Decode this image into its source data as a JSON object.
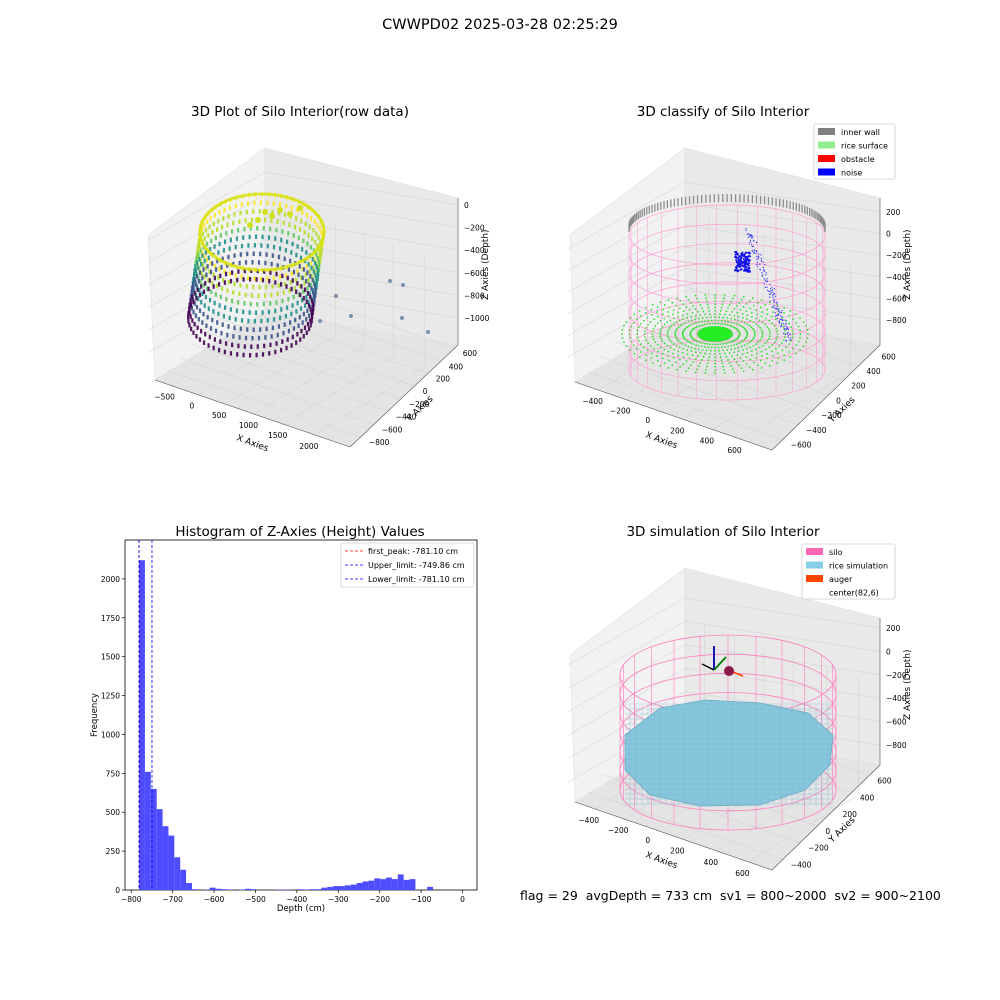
{
  "figure_title": "CWWPD02 2025-03-28 02:25:29",
  "footer_text": "flag = 29  avgDepth = 733 cm  sv1 = 800~2000  sv2 = 900~2100",
  "chart_data": [
    {
      "type": "scatter",
      "title": "3D Plot of Silo Interior(row data)",
      "xlabel": "X Axies",
      "ylabel": "Y Axies",
      "zlabel": "Z Axies (Depth)",
      "x_ticks": [
        "−500",
        "0",
        "500",
        "1000",
        "1500",
        "2000"
      ],
      "y_ticks": [
        "−800",
        "−600",
        "−400",
        "−200",
        "0",
        "200",
        "400",
        "600"
      ],
      "z_ticks": [
        "0",
        "−200",
        "−400",
        "−600",
        "−800",
        "−1000"
      ],
      "colormap": "viridis"
    },
    {
      "type": "scatter",
      "title": "3D classify of Silo Interior",
      "xlabel": "X Axies",
      "ylabel": "Y Axies",
      "zlabel": "Z Axies (Depth)",
      "x_ticks": [
        "−400",
        "−200",
        "0",
        "200",
        "400",
        "600"
      ],
      "y_ticks": [
        "−600",
        "−400",
        "−200",
        "0",
        "200",
        "400",
        "600"
      ],
      "z_ticks": [
        "200",
        "0",
        "−200",
        "−400",
        "−600",
        "−800"
      ],
      "legend": [
        {
          "label": "inner wall",
          "color": "#808080"
        },
        {
          "label": "rice surface",
          "color": "#90ee90"
        },
        {
          "label": "obstacle",
          "color": "#ff0000"
        },
        {
          "label": "noise",
          "color": "#0000ff"
        }
      ],
      "legend_position": "top-right"
    },
    {
      "type": "bar",
      "title": "Histogram of Z-Axies (Height) Values",
      "xlabel": "Depth (cm)",
      "ylabel": "Frequency",
      "xlim": [
        -815,
        35
      ],
      "ylim": [
        0,
        2250
      ],
      "x_ticks": [
        -800,
        -700,
        -600,
        -500,
        -400,
        -300,
        -200,
        -100,
        0
      ],
      "y_ticks": [
        0,
        250,
        500,
        750,
        1000,
        1250,
        1500,
        1750,
        2000
      ],
      "bin_width": 14.2,
      "bins_start": [
        -781.1,
        -766.9,
        -752.7,
        -738.5,
        -724.3,
        -710.1,
        -695.9,
        -681.7,
        -667.5,
        -653.3,
        -639.1,
        -624.9,
        -610.7,
        -596.5,
        -582.3,
        -568.1,
        -553.9,
        -539.7,
        -525.5,
        -511.3,
        -497.1,
        -482.9,
        -468.7,
        -454.5,
        -440.3,
        -426.1,
        -411.9,
        -397.7,
        -383.5,
        -369.3,
        -355.1,
        -340.9,
        -326.7,
        -312.5,
        -298.3,
        -284.1,
        -269.9,
        -255.7,
        -241.5,
        -227.3,
        -213.1,
        -198.9,
        -184.7,
        -170.5,
        -156.3,
        -142.1,
        -127.9,
        -113.7,
        -99.5,
        -85.3,
        -71.1,
        -56.9,
        -42.7,
        -28.5,
        -14.3
      ],
      "counts": [
        2120,
        760,
        650,
        520,
        410,
        350,
        210,
        130,
        45,
        5,
        0,
        3,
        15,
        8,
        5,
        3,
        0,
        3,
        8,
        5,
        0,
        0,
        0,
        3,
        3,
        3,
        0,
        5,
        3,
        5,
        5,
        15,
        20,
        25,
        25,
        30,
        35,
        45,
        55,
        60,
        75,
        70,
        80,
        70,
        100,
        65,
        70,
        0,
        0,
        20,
        0,
        0,
        0,
        0,
        0
      ],
      "vlines": [
        {
          "label": "first_peak: -781.10 cm",
          "x": -781.1,
          "color": "#ff0000"
        },
        {
          "label": "Upper_limit: -749.86 cm",
          "x": -749.86,
          "color": "#0000ff"
        },
        {
          "label": "Lower_limit: -781.10 cm",
          "x": -781.1,
          "color": "#0000ff"
        }
      ],
      "bar_color": "#4d4dff",
      "legend_position": "top-right"
    },
    {
      "type": "scatter",
      "title": "3D simulation of Silo Interior",
      "xlabel": "X Axies",
      "ylabel": "Y Axies",
      "zlabel": "Z Axies (Depth)",
      "x_ticks": [
        "−400",
        "−200",
        "0",
        "200",
        "400",
        "600"
      ],
      "y_ticks": [
        "−400",
        "−200",
        "0",
        "200",
        "400",
        "600"
      ],
      "z_ticks": [
        "200",
        "0",
        "−200",
        "−400",
        "−600",
        "−800"
      ],
      "legend": [
        {
          "label": "silo",
          "color": "#ff69b4"
        },
        {
          "label": "rice simulation",
          "color": "#87ceeb"
        },
        {
          "label": "auger",
          "color": "#ff4500"
        },
        {
          "label": "center(82,6)",
          "color": "#ffffff"
        }
      ],
      "legend_position": "top-right"
    }
  ]
}
